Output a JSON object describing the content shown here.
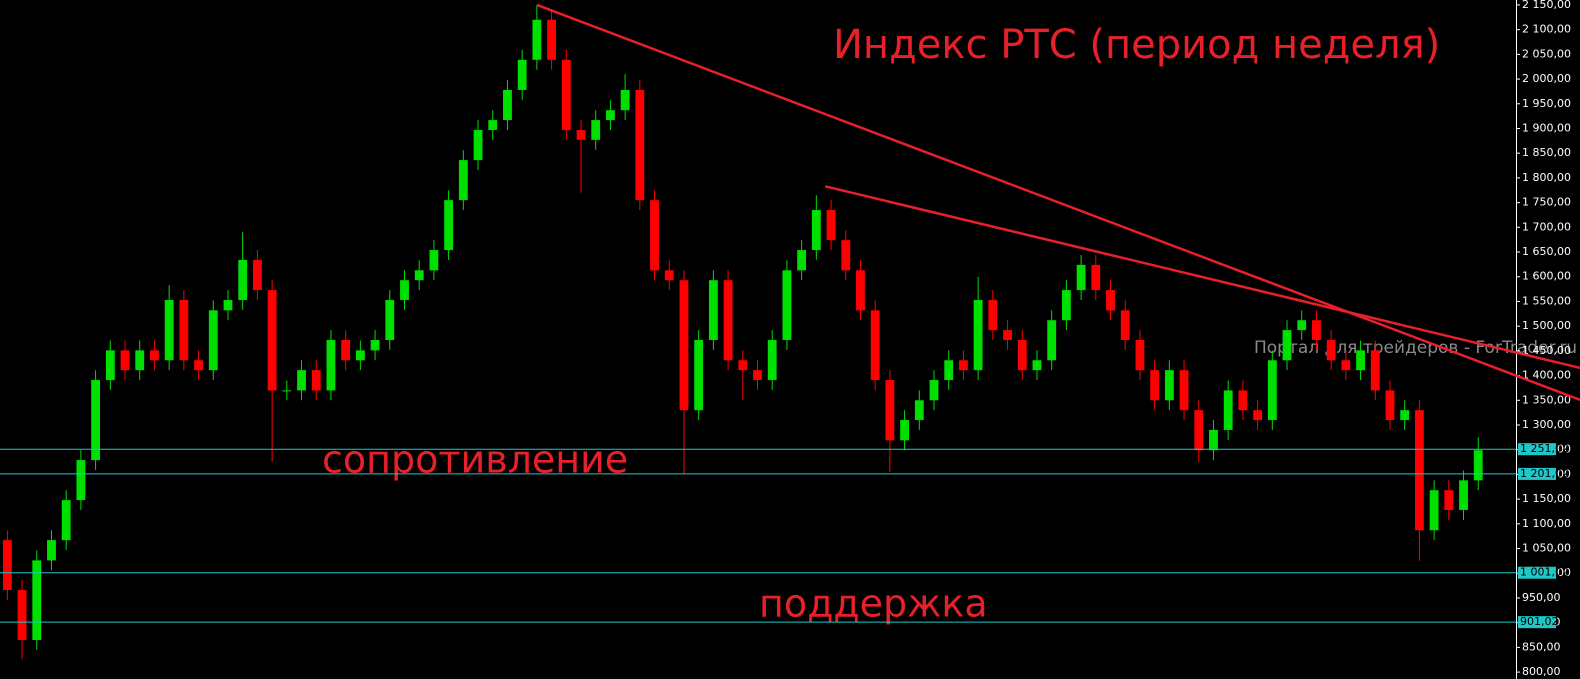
{
  "chart_data": {
    "type": "candlestick",
    "title": "Индекс РТС (период неделя)",
    "annotations": [
      "сопротивление",
      "поддержка"
    ],
    "watermark": "Портал для трейдеров - ForTrader.ru",
    "up_color": "#00e000",
    "down_color": "#ff0000",
    "xlim": [
      -0.5,
      102.5
    ],
    "ylim": [
      786,
      2160
    ],
    "open": [
      1067,
      966,
      865,
      1026,
      1067,
      1148,
      1229,
      1391,
      1451,
      1411,
      1451,
      1431,
      1553,
      1431,
      1411,
      1532,
      1553,
      1634,
      1573,
      1370,
      1370,
      1411,
      1370,
      1472,
      1431,
      1451,
      1472,
      1553,
      1593,
      1613,
      1654,
      1755,
      1836,
      1897,
      1917,
      1978,
      2039,
      2120,
      2039,
      1897,
      1877,
      1917,
      1937,
      1978,
      1755,
      1613,
      1593,
      1330,
      1472,
      1593,
      1431,
      1411,
      1391,
      1472,
      1613,
      1654,
      1735,
      1674,
      1613,
      1532,
      1391,
      1269,
      1310,
      1350,
      1391,
      1431,
      1411,
      1553,
      1492,
      1472,
      1411,
      1431,
      1512,
      1573,
      1624,
      1573,
      1532,
      1472,
      1411,
      1350,
      1411,
      1330,
      1249,
      1290,
      1370,
      1330,
      1310,
      1431,
      1492,
      1512,
      1472,
      1431,
      1411,
      1451,
      1370,
      1310,
      1330,
      1087,
      1168,
      1128,
      1188
    ],
    "high": [
      1087,
      986,
      1046,
      1087,
      1168,
      1249,
      1411,
      1471,
      1471,
      1471,
      1471,
      1583,
      1573,
      1451,
      1552,
      1573,
      1690,
      1654,
      1593,
      1390,
      1431,
      1431,
      1492,
      1492,
      1471,
      1492,
      1573,
      1613,
      1633,
      1674,
      1775,
      1856,
      1917,
      1937,
      1998,
      2059,
      2150,
      2140,
      2059,
      1917,
      1937,
      1957,
      2010,
      1998,
      1775,
      1633,
      1613,
      1492,
      1613,
      1613,
      1451,
      1431,
      1492,
      1633,
      1674,
      1765,
      1755,
      1694,
      1633,
      1552,
      1411,
      1330,
      1370,
      1411,
      1451,
      1451,
      1600,
      1573,
      1512,
      1492,
      1451,
      1532,
      1593,
      1644,
      1644,
      1593,
      1552,
      1492,
      1431,
      1431,
      1431,
      1350,
      1310,
      1390,
      1390,
      1350,
      1451,
      1512,
      1532,
      1532,
      1492,
      1451,
      1471,
      1471,
      1390,
      1350,
      1350,
      1188,
      1188,
      1208,
      1275
    ],
    "low": [
      946,
      826,
      845,
      1006,
      1047,
      1128,
      1209,
      1371,
      1391,
      1391,
      1411,
      1411,
      1411,
      1391,
      1391,
      1512,
      1533,
      1553,
      1225,
      1350,
      1350,
      1350,
      1350,
      1411,
      1411,
      1431,
      1452,
      1533,
      1573,
      1593,
      1634,
      1735,
      1816,
      1877,
      1897,
      1958,
      2019,
      2019,
      1877,
      1770,
      1857,
      1897,
      1917,
      1735,
      1593,
      1573,
      1200,
      1310,
      1452,
      1411,
      1350,
      1371,
      1371,
      1452,
      1593,
      1634,
      1654,
      1593,
      1512,
      1371,
      1205,
      1249,
      1290,
      1330,
      1371,
      1391,
      1391,
      1472,
      1452,
      1391,
      1391,
      1411,
      1492,
      1553,
      1553,
      1512,
      1452,
      1391,
      1330,
      1330,
      1310,
      1225,
      1229,
      1270,
      1310,
      1290,
      1290,
      1411,
      1472,
      1452,
      1411,
      1391,
      1391,
      1350,
      1290,
      1290,
      1025,
      1067,
      1108,
      1108,
      1168
    ],
    "close": [
      966,
      865,
      1026,
      1067,
      1148,
      1229,
      1391,
      1451,
      1411,
      1451,
      1431,
      1553,
      1431,
      1411,
      1532,
      1553,
      1634,
      1573,
      1370,
      1370,
      1411,
      1370,
      1472,
      1431,
      1451,
      1472,
      1553,
      1593,
      1613,
      1654,
      1755,
      1836,
      1897,
      1917,
      1978,
      2039,
      2120,
      2039,
      1897,
      1877,
      1917,
      1937,
      1978,
      1755,
      1613,
      1593,
      1330,
      1472,
      1593,
      1431,
      1411,
      1391,
      1472,
      1613,
      1654,
      1735,
      1674,
      1613,
      1532,
      1391,
      1269,
      1310,
      1350,
      1391,
      1431,
      1411,
      1553,
      1492,
      1472,
      1411,
      1431,
      1512,
      1573,
      1624,
      1573,
      1532,
      1472,
      1411,
      1350,
      1411,
      1330,
      1249,
      1290,
      1370,
      1330,
      1310,
      1431,
      1492,
      1512,
      1472,
      1431,
      1411,
      1451,
      1370,
      1310,
      1330,
      1087,
      1168,
      1128,
      1188,
      1249
    ],
    "yticks": [
      {
        "value": 800,
        "label": "800,00"
      },
      {
        "value": 850,
        "label": "850,00"
      },
      {
        "value": 900,
        "label": "900,00"
      },
      {
        "value": 950,
        "label": "950,00"
      },
      {
        "value": 1000,
        "label": "1 000,00"
      },
      {
        "value": 1050,
        "label": "1 050,00"
      },
      {
        "value": 1100,
        "label": "1 100,00"
      },
      {
        "value": 1150,
        "label": "1 150,00"
      },
      {
        "value": 1200,
        "label": "1 200,00"
      },
      {
        "value": 1250,
        "label": "1 250,00"
      },
      {
        "value": 1300,
        "label": "1 300,00"
      },
      {
        "value": 1350,
        "label": "1 350,00"
      },
      {
        "value": 1400,
        "label": "1 400,00"
      },
      {
        "value": 1450,
        "label": "1 450,00"
      },
      {
        "value": 1500,
        "label": "1 500,00"
      },
      {
        "value": 1550,
        "label": "1 550,00"
      },
      {
        "value": 1600,
        "label": "1 600,00"
      },
      {
        "value": 1650,
        "label": "1 650,00"
      },
      {
        "value": 1700,
        "label": "1 700,00"
      },
      {
        "value": 1750,
        "label": "1 750,00"
      },
      {
        "value": 1800,
        "label": "1 800,00"
      },
      {
        "value": 1850,
        "label": "1 850,00"
      },
      {
        "value": 1900,
        "label": "1 900,00"
      },
      {
        "value": 1950,
        "label": "1 950,00"
      },
      {
        "value": 2000,
        "label": "2 000,00"
      },
      {
        "value": 2050,
        "label": "2 050,00"
      },
      {
        "value": 2100,
        "label": "2 100,00"
      },
      {
        "value": 2150,
        "label": "2 150,00"
      }
    ],
    "levels": [
      {
        "value": 1251.02,
        "label": "1 251,02"
      },
      {
        "value": 1201.02,
        "label": "1 201,02"
      },
      {
        "value": 1001.02,
        "label": "1 001,02"
      },
      {
        "value": 901.02,
        "label": "901,02"
      }
    ],
    "level_color": "#1ec8c8",
    "trendlines": [
      {
        "x": [
          36,
          107
        ],
        "y": [
          2150,
          1350
        ]
      },
      {
        "x": [
          55.6,
          107
        ],
        "y": [
          1783,
          1415
        ]
      }
    ],
    "trendline_color": "#e8202a"
  }
}
